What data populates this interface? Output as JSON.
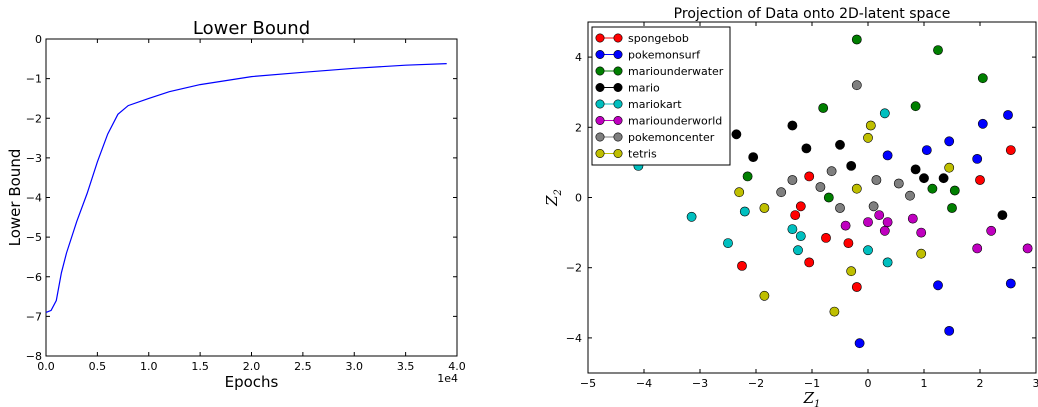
{
  "chart_data": [
    {
      "type": "line",
      "title": "Lower Bound",
      "xlabel": "Epochs",
      "ylabel": "Lower Bound",
      "x_offset_label": "1e4",
      "xlim": [
        0,
        40000
      ],
      "ylim": [
        -8,
        0
      ],
      "xticks": [
        0,
        5000,
        10000,
        15000,
        20000,
        25000,
        30000,
        35000,
        40000
      ],
      "xtick_labels": [
        "0.0",
        "0.5",
        "1.0",
        "1.5",
        "2.0",
        "2.5",
        "3.0",
        "3.5",
        "4.0"
      ],
      "yticks": [
        0,
        -1,
        -2,
        -3,
        -4,
        -5,
        -6,
        -7,
        -8
      ],
      "ytick_labels": [
        "0",
        "−1",
        "−2",
        "−3",
        "−4",
        "−5",
        "−6",
        "−7",
        "−8"
      ],
      "grid": false,
      "color": "#0000ff",
      "series": [
        {
          "x": [
            0,
            500,
            1000,
            1500,
            2000,
            3000,
            4000,
            5000,
            6000,
            7000,
            8000,
            10000,
            12000,
            15000,
            20000,
            25000,
            30000,
            35000,
            39000
          ],
          "values": [
            -6.9,
            -6.85,
            -6.6,
            -5.9,
            -5.4,
            -4.6,
            -3.9,
            -3.1,
            -2.4,
            -1.9,
            -1.68,
            -1.5,
            -1.33,
            -1.15,
            -0.95,
            -0.84,
            -0.74,
            -0.66,
            -0.62
          ]
        }
      ]
    },
    {
      "type": "scatter",
      "title": "Projection of Data onto 2D-latent space",
      "xlabel": "Z",
      "xlabel_sub": "1",
      "ylabel": "Z",
      "ylabel_sub": "2",
      "xlim": [
        -5,
        3
      ],
      "ylim": [
        -5,
        5
      ],
      "xticks": [
        -5,
        -4,
        -3,
        -2,
        -1,
        0,
        1,
        2,
        3
      ],
      "xtick_labels": [
        "−5",
        "−4",
        "−3",
        "−2",
        "−1",
        "0",
        "1",
        "2",
        "3"
      ],
      "yticks": [
        4,
        2,
        0,
        -2,
        -4
      ],
      "ytick_labels": [
        "4",
        "2",
        "0",
        "−2",
        "−4"
      ],
      "grid": false,
      "legend_position": "top-left",
      "series": [
        {
          "name": "spongebob",
          "color": "#ff0000",
          "x": [
            -1.05,
            -1.3,
            -2.25,
            -1.2,
            -0.75,
            -1.05,
            -0.35,
            -0.2,
            2.0,
            2.55
          ],
          "y": [
            0.6,
            -0.5,
            -1.95,
            -0.25,
            -1.15,
            -1.85,
            -1.3,
            -2.55,
            0.5,
            1.35
          ]
        },
        {
          "name": "pokemonsurf",
          "color": "#0000ff",
          "x": [
            -0.15,
            0.35,
            1.05,
            1.45,
            2.05,
            2.5,
            1.95,
            1.25,
            1.45,
            2.55
          ],
          "y": [
            -4.15,
            1.2,
            1.35,
            1.6,
            2.1,
            2.35,
            1.1,
            -2.5,
            -3.8,
            -2.45
          ]
        },
        {
          "name": "mariounderwater",
          "color": "#007f00",
          "x": [
            -0.2,
            1.25,
            2.05,
            0.85,
            -0.8,
            -2.15,
            -0.7,
            1.15,
            1.55,
            1.5
          ],
          "y": [
            4.5,
            4.2,
            3.4,
            2.6,
            2.55,
            0.6,
            0.0,
            0.25,
            0.2,
            -0.3
          ]
        },
        {
          "name": "mario",
          "color": "#000000",
          "x": [
            -2.35,
            -1.35,
            -1.1,
            -2.05,
            -0.5,
            -0.3,
            0.85,
            1.0,
            1.35,
            2.4
          ],
          "y": [
            1.8,
            2.05,
            1.4,
            1.15,
            1.5,
            0.9,
            0.8,
            0.55,
            0.55,
            -0.5
          ]
        },
        {
          "name": "mariokart",
          "color": "#00bfbf",
          "x": [
            -4.1,
            -3.15,
            -2.2,
            -2.5,
            -1.35,
            -1.2,
            -1.25,
            0.0,
            0.35,
            0.3
          ],
          "y": [
            0.9,
            -0.55,
            -0.4,
            -1.3,
            -0.9,
            -1.1,
            -1.5,
            -1.5,
            -1.85,
            2.4
          ]
        },
        {
          "name": "mariounderworld",
          "color": "#bf00bf",
          "x": [
            -0.4,
            0.0,
            0.2,
            0.3,
            0.35,
            0.8,
            0.95,
            1.95,
            2.2,
            2.85
          ],
          "y": [
            -0.8,
            -0.7,
            -0.5,
            -0.95,
            -0.7,
            -0.6,
            -1.0,
            -1.45,
            -0.95,
            -1.45
          ]
        },
        {
          "name": "pokemoncenter",
          "color": "#7f7f7f",
          "x": [
            -0.2,
            -0.65,
            -1.35,
            -1.55,
            -0.85,
            0.15,
            0.55,
            0.75,
            0.1,
            -0.5
          ],
          "y": [
            3.2,
            0.75,
            0.5,
            0.15,
            0.3,
            0.5,
            0.4,
            0.05,
            -0.25,
            -0.3
          ]
        },
        {
          "name": "tetris",
          "color": "#bfbf00",
          "x": [
            0.05,
            0.0,
            -0.2,
            1.45,
            -2.3,
            -1.85,
            0.95,
            -0.3,
            -1.85,
            -0.6
          ],
          "y": [
            2.05,
            1.7,
            0.25,
            0.85,
            0.15,
            -0.3,
            -1.6,
            -2.1,
            -2.8,
            -3.25
          ]
        }
      ]
    }
  ]
}
